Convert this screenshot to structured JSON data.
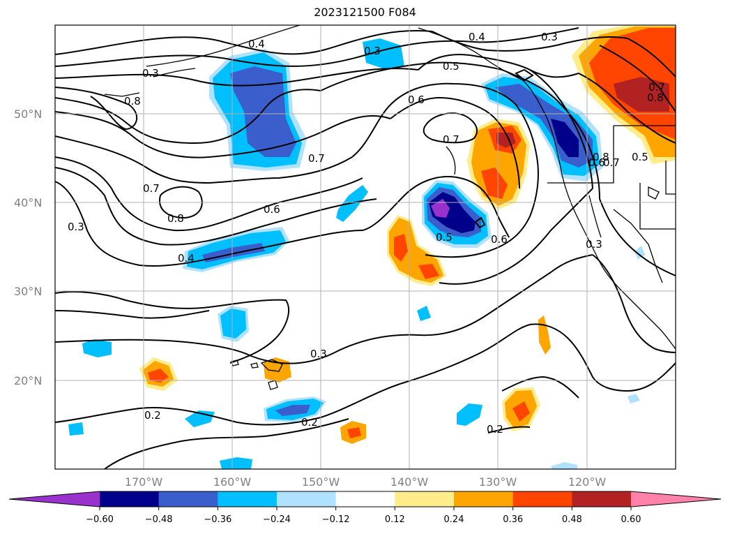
{
  "title": "2023121500 F084",
  "map": {
    "lat_labels": [
      "50°N",
      "40°N",
      "30°N",
      "20°N"
    ],
    "lon_labels": [
      "170°W",
      "160°W",
      "150°W",
      "140°W",
      "130°W",
      "120°W"
    ],
    "contour_labels": [
      "0.3",
      "0.8",
      "0.7",
      "0.8",
      "0.3",
      "0.4",
      "0.3",
      "0.4",
      "0.5",
      "0.6",
      "0.7",
      "0.6",
      "0.7",
      "0.3",
      "0.4",
      "0.6",
      "0.6",
      "0.5",
      "0.3",
      "0.2",
      "0.2",
      "0.2",
      "0.8",
      "0.7",
      "0.5",
      "0.7",
      "0.8",
      "0.3"
    ]
  },
  "colorbar": {
    "ticks": [
      "−0.60",
      "−0.48",
      "−0.36",
      "−0.24",
      "−0.12",
      "0.12",
      "0.24",
      "0.36",
      "0.48",
      "0.60"
    ],
    "colors": [
      "#9932cc",
      "#00008b",
      "#3a5fcd",
      "#00bfff",
      "#b0e2ff",
      "#ffffff",
      "#ffec8b",
      "#ffa500",
      "#ff4500",
      "#b22222",
      "#ff82ab"
    ]
  }
}
